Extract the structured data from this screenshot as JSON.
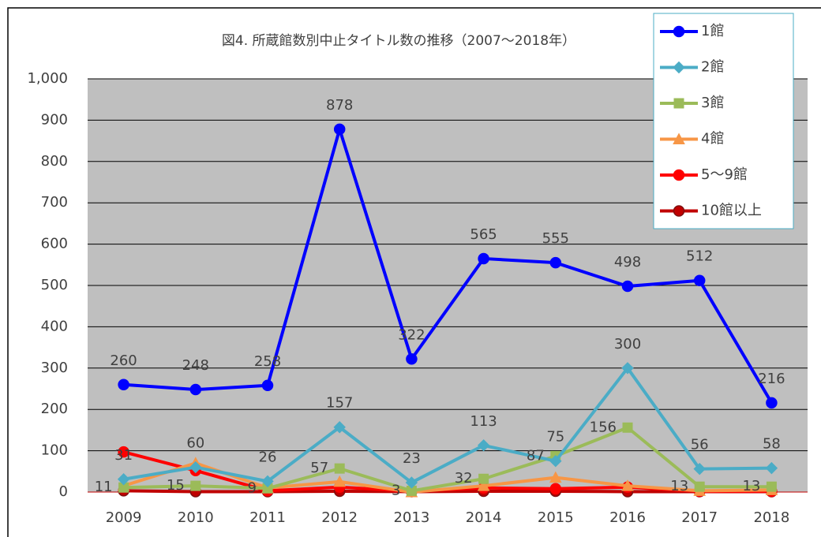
{
  "chart_data": {
    "type": "line",
    "title": "図4. 所蔵館数別中止タイトル数の推移（2007〜2018年）",
    "categories": [
      "2009",
      "2010",
      "2011",
      "2012",
      "2013",
      "2014",
      "2015",
      "2016",
      "2017",
      "2018"
    ],
    "series": [
      {
        "name": "1館",
        "color": "#0000ff",
        "marker": "circle",
        "data_labels": "above",
        "values": [
          260,
          248,
          258,
          878,
          322,
          565,
          555,
          498,
          512,
          216
        ]
      },
      {
        "name": "2館",
        "color": "#4bacc6",
        "marker": "diamond",
        "data_labels": "above",
        "values": [
          31,
          60,
          26,
          157,
          23,
          113,
          75,
          300,
          56,
          58
        ]
      },
      {
        "name": "3館",
        "color": "#9bbb59",
        "marker": "square",
        "data_labels": "left",
        "values": [
          11,
          15,
          9,
          57,
          3,
          32,
          87,
          156,
          13,
          13
        ]
      },
      {
        "name": "4館",
        "color": "#f79646",
        "marker": "triangle",
        "values": [
          15,
          70,
          10,
          25,
          0,
          15,
          35,
          15,
          3,
          5
        ]
      },
      {
        "name": "5〜9館",
        "color": "#ff0000",
        "marker": "circle",
        "values": [
          97,
          52,
          3,
          12,
          2,
          10,
          8,
          12,
          2,
          2
        ]
      },
      {
        "name": "10館以上",
        "color": "#c00000",
        "marker": "circle",
        "values": [
          3,
          1,
          1,
          2,
          1,
          2,
          2,
          1,
          1,
          1
        ]
      }
    ],
    "ylim": [
      0,
      1000
    ],
    "yticks": [
      0,
      100,
      200,
      300,
      400,
      500,
      600,
      700,
      800,
      900,
      {
        "value": 1000,
        "label": "1,000"
      }
    ],
    "grid": true,
    "legend": "top-right"
  }
}
